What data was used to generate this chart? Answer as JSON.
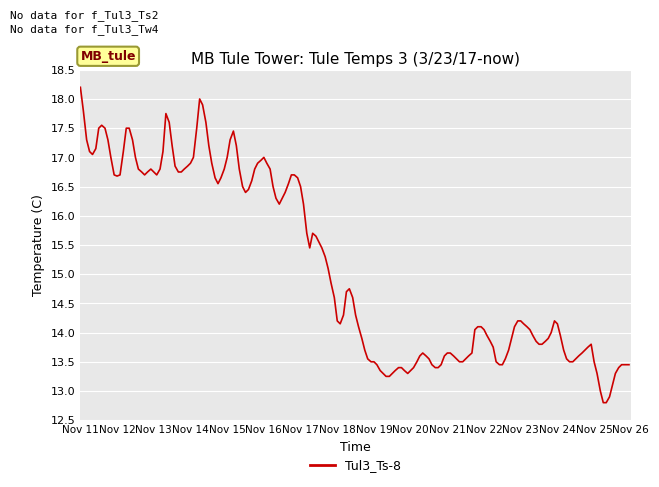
{
  "title": "MB Tule Tower: Tule Temps 3 (3/23/17-now)",
  "xlabel": "Time",
  "ylabel": "Temperature (C)",
  "no_data_text": [
    "No data for f_Tul3_Ts2",
    "No data for f_Tul3_Tw4"
  ],
  "legend_box_label": "MB_tule",
  "legend_entry": "Tul3_Ts-8",
  "line_color": "#cc0000",
  "ylim": [
    12.5,
    18.5
  ],
  "background_color": "#e8e8e8",
  "x_tick_labels": [
    "Nov 11",
    "Nov 12",
    "Nov 13",
    "Nov 14",
    "Nov 15",
    "Nov 16",
    "Nov 17",
    "Nov 18",
    "Nov 19",
    "Nov 20",
    "Nov 21",
    "Nov 22",
    "Nov 23",
    "Nov 24",
    "Nov 25",
    "Nov 26"
  ],
  "x_ticks": [
    0,
    1,
    2,
    3,
    4,
    5,
    6,
    7,
    8,
    9,
    10,
    11,
    12,
    13,
    14,
    15
  ],
  "y_ticks": [
    12.5,
    13.0,
    13.5,
    14.0,
    14.5,
    15.0,
    15.5,
    16.0,
    16.5,
    17.0,
    17.5,
    18.0,
    18.5
  ],
  "data_x": [
    0.0,
    0.08,
    0.17,
    0.25,
    0.33,
    0.42,
    0.5,
    0.58,
    0.67,
    0.75,
    0.83,
    0.92,
    1.0,
    1.08,
    1.17,
    1.25,
    1.33,
    1.42,
    1.5,
    1.58,
    1.67,
    1.75,
    1.83,
    1.92,
    2.0,
    2.08,
    2.17,
    2.25,
    2.33,
    2.42,
    2.5,
    2.58,
    2.67,
    2.75,
    2.83,
    2.92,
    3.0,
    3.08,
    3.17,
    3.25,
    3.33,
    3.42,
    3.5,
    3.58,
    3.67,
    3.75,
    3.83,
    3.92,
    4.0,
    4.08,
    4.17,
    4.25,
    4.33,
    4.42,
    4.5,
    4.58,
    4.67,
    4.75,
    4.83,
    4.92,
    5.0,
    5.08,
    5.17,
    5.25,
    5.33,
    5.42,
    5.5,
    5.58,
    5.67,
    5.75,
    5.83,
    5.92,
    6.0,
    6.08,
    6.17,
    6.25,
    6.33,
    6.42,
    6.5,
    6.58,
    6.67,
    6.75,
    6.83,
    6.92,
    7.0,
    7.08,
    7.17,
    7.25,
    7.33,
    7.42,
    7.5,
    7.58,
    7.67,
    7.75,
    7.83,
    7.92,
    8.0,
    8.08,
    8.17,
    8.25,
    8.33,
    8.42,
    8.5,
    8.58,
    8.67,
    8.75,
    8.83,
    8.92,
    9.0,
    9.08,
    9.17,
    9.25,
    9.33,
    9.42,
    9.5,
    9.58,
    9.67,
    9.75,
    9.83,
    9.92,
    10.0,
    10.08,
    10.17,
    10.25,
    10.33,
    10.42,
    10.5,
    10.58,
    10.67,
    10.75,
    10.83,
    10.92,
    11.0,
    11.08,
    11.17,
    11.25,
    11.33,
    11.42,
    11.5,
    11.58,
    11.67,
    11.75,
    11.83,
    11.92,
    12.0,
    12.08,
    12.17,
    12.25,
    12.33,
    12.42,
    12.5,
    12.58,
    12.67,
    12.75,
    12.83,
    12.92,
    13.0,
    13.08,
    13.17,
    13.25,
    13.33,
    13.42,
    13.5,
    13.58,
    13.67,
    13.75,
    13.83,
    13.92,
    14.0,
    14.08,
    14.17,
    14.25,
    14.33,
    14.42,
    14.5,
    14.58,
    14.67,
    14.75,
    14.83,
    14.92,
    14.95
  ],
  "data_y": [
    18.2,
    17.8,
    17.3,
    17.1,
    17.05,
    17.15,
    17.5,
    17.55,
    17.5,
    17.3,
    17.0,
    16.7,
    16.68,
    16.7,
    17.1,
    17.5,
    17.5,
    17.3,
    17.0,
    16.8,
    16.75,
    16.7,
    16.75,
    16.8,
    16.75,
    16.7,
    16.8,
    17.1,
    17.75,
    17.6,
    17.2,
    16.85,
    16.75,
    16.75,
    16.8,
    16.85,
    16.9,
    17.0,
    17.5,
    18.0,
    17.9,
    17.6,
    17.2,
    16.9,
    16.65,
    16.55,
    16.65,
    16.8,
    17.0,
    17.3,
    17.45,
    17.2,
    16.8,
    16.5,
    16.4,
    16.45,
    16.6,
    16.8,
    16.9,
    16.95,
    17.0,
    16.9,
    16.8,
    16.5,
    16.3,
    16.2,
    16.3,
    16.4,
    16.55,
    16.7,
    16.7,
    16.65,
    16.5,
    16.2,
    15.7,
    15.45,
    15.7,
    15.65,
    15.55,
    15.45,
    15.3,
    15.1,
    14.85,
    14.6,
    14.2,
    14.15,
    14.3,
    14.7,
    14.75,
    14.6,
    14.3,
    14.1,
    13.9,
    13.7,
    13.55,
    13.5,
    13.5,
    13.45,
    13.35,
    13.3,
    13.25,
    13.25,
    13.3,
    13.35,
    13.4,
    13.4,
    13.35,
    13.3,
    13.35,
    13.4,
    13.5,
    13.6,
    13.65,
    13.6,
    13.55,
    13.45,
    13.4,
    13.4,
    13.45,
    13.6,
    13.65,
    13.65,
    13.6,
    13.55,
    13.5,
    13.5,
    13.55,
    13.6,
    13.65,
    14.05,
    14.1,
    14.1,
    14.05,
    13.95,
    13.85,
    13.75,
    13.5,
    13.45,
    13.45,
    13.55,
    13.7,
    13.9,
    14.1,
    14.2,
    14.2,
    14.15,
    14.1,
    14.05,
    13.95,
    13.85,
    13.8,
    13.8,
    13.85,
    13.9,
    14.0,
    14.2,
    14.15,
    13.95,
    13.7,
    13.55,
    13.5,
    13.5,
    13.55,
    13.6,
    13.65,
    13.7,
    13.75,
    13.8,
    13.5,
    13.3,
    13.0,
    12.8,
    12.8,
    12.9,
    13.1,
    13.3,
    13.4,
    13.45,
    13.45,
    13.45,
    13.45
  ]
}
